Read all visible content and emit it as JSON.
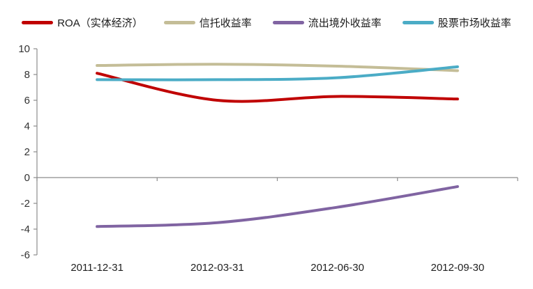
{
  "chart_data": {
    "type": "line",
    "title": "",
    "xlabel": "",
    "ylabel": "",
    "categories": [
      "2011-12-31",
      "2012-03-31",
      "2012-06-30",
      "2012-09-30"
    ],
    "series": [
      {
        "name": "ROA（实体经济）",
        "color": "#C00000",
        "values": [
          8.1,
          6.0,
          6.3,
          6.1
        ]
      },
      {
        "name": "信托收益率",
        "color": "#C4BD97",
        "values": [
          8.7,
          8.8,
          8.65,
          8.3
        ]
      },
      {
        "name": "流出境外收益率",
        "color": "#8064A2",
        "values": [
          -3.8,
          -3.5,
          -2.3,
          -0.7
        ]
      },
      {
        "name": "股票市场收益率",
        "color": "#4BACC6",
        "values": [
          7.6,
          7.6,
          7.75,
          8.6
        ]
      }
    ],
    "ylim": [
      -6,
      10
    ],
    "ytick_step": 2,
    "yticks": [
      -6,
      -4,
      -2,
      0,
      2,
      4,
      6,
      8,
      10
    ],
    "grid": "zero-baseline-only",
    "legend_position": "top",
    "line_smoothing": true,
    "axis_color": "#8C8C8C"
  }
}
